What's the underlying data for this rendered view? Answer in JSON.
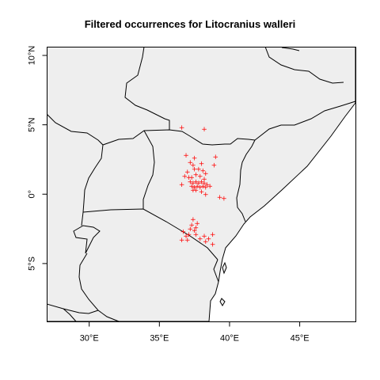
{
  "title": "Filtered occurrences for Litocranius walleri",
  "colors": {
    "land": "#eeeeee",
    "sea": "#ffffff",
    "border": "#000000",
    "occurrence": "#ff0000"
  },
  "map": {
    "projection": "equirectangular",
    "lon_range": [
      27,
      49
    ],
    "lat_range": [
      -9.2,
      10.6
    ],
    "x_ticks": [
      {
        "value": 30,
        "label": "30°E"
      },
      {
        "value": 35,
        "label": "35°E"
      },
      {
        "value": 40,
        "label": "40°E"
      },
      {
        "value": 45,
        "label": "45°E"
      }
    ],
    "y_ticks": [
      {
        "value": -5,
        "label": "5°S"
      },
      {
        "value": 0,
        "label": "0°"
      },
      {
        "value": 5,
        "label": "5°N"
      },
      {
        "value": 10,
        "label": "10°N"
      }
    ],
    "occurrence_marker": "+"
  },
  "chart_data": {
    "type": "scatter",
    "title": "Filtered occurrences for Litocranius walleri",
    "xlabel": "",
    "ylabel": "",
    "xlim": [
      27,
      49
    ],
    "ylim": [
      -9.2,
      10.6
    ],
    "series": [
      {
        "points": [
          [
            36.6,
            4.8
          ],
          [
            38.2,
            4.7
          ],
          [
            36.9,
            2.8
          ],
          [
            37.5,
            2.6
          ],
          [
            39.0,
            2.7
          ],
          [
            37.2,
            2.3
          ],
          [
            37.4,
            2.1
          ],
          [
            38.0,
            2.2
          ],
          [
            38.9,
            2.1
          ],
          [
            37.0,
            1.6
          ],
          [
            37.5,
            1.8
          ],
          [
            37.8,
            1.8
          ],
          [
            38.1,
            1.7
          ],
          [
            38.3,
            1.5
          ],
          [
            36.8,
            1.3
          ],
          [
            37.1,
            1.2
          ],
          [
            37.3,
            1.2
          ],
          [
            37.6,
            1.4
          ],
          [
            37.9,
            1.3
          ],
          [
            38.2,
            1.1
          ],
          [
            37.2,
            0.9
          ],
          [
            37.4,
            0.8
          ],
          [
            37.6,
            0.9
          ],
          [
            37.8,
            0.8
          ],
          [
            38.0,
            0.9
          ],
          [
            38.2,
            0.8
          ],
          [
            38.4,
            0.7
          ],
          [
            37.3,
            0.6
          ],
          [
            37.5,
            0.5
          ],
          [
            37.7,
            0.6
          ],
          [
            37.9,
            0.5
          ],
          [
            38.1,
            0.6
          ],
          [
            38.3,
            0.5
          ],
          [
            36.6,
            0.7
          ],
          [
            38.6,
            0.6
          ],
          [
            37.4,
            0.3
          ],
          [
            37.6,
            0.3
          ],
          [
            38.0,
            0.2
          ],
          [
            39.6,
            -0.3
          ],
          [
            39.3,
            -0.2
          ],
          [
            38.3,
            0.0
          ],
          [
            37.4,
            -1.8
          ],
          [
            37.3,
            -2.2
          ],
          [
            37.7,
            -2.1
          ],
          [
            37.2,
            -2.5
          ],
          [
            37.5,
            -2.6
          ],
          [
            37.6,
            -2.4
          ],
          [
            36.7,
            -2.7
          ],
          [
            36.9,
            -3.0
          ],
          [
            37.1,
            -2.9
          ],
          [
            37.6,
            -2.9
          ],
          [
            37.9,
            -3.2
          ],
          [
            38.2,
            -3.0
          ],
          [
            38.5,
            -3.2
          ],
          [
            38.8,
            -2.9
          ],
          [
            36.6,
            -3.3
          ],
          [
            37.0,
            -3.3
          ],
          [
            38.3,
            -3.4
          ],
          [
            38.8,
            -3.6
          ]
        ]
      }
    ]
  }
}
